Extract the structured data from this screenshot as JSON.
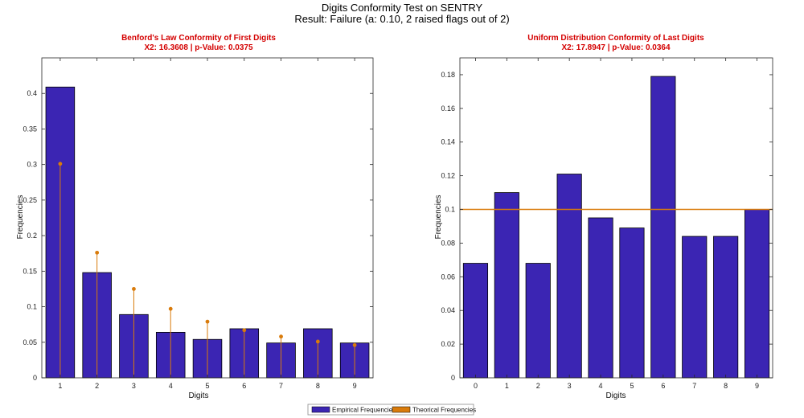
{
  "figure": {
    "title_line1": "Digits Conformity Test on SENTRY",
    "title_line2": "Result: Failure (a: 0.10, 2 raised flags out of 2)"
  },
  "legend": {
    "empirical": "Empirical Frequencies",
    "theoretical": "Theorical Frequencies"
  },
  "colors": {
    "bar_fill": "#3b25b3",
    "theoretical": "#d97b0b",
    "subtitle": "#d40000"
  },
  "chart_data": [
    {
      "type": "bar",
      "title": "Benford's Law Conformity of First Digits",
      "subtitle": "X2: 16.3608 | p-Value: 0.0375",
      "xlabel": "Digits",
      "ylabel": "Frequencies",
      "categories": [
        "1",
        "2",
        "3",
        "4",
        "5",
        "6",
        "7",
        "8",
        "9"
      ],
      "ylim": [
        0,
        0.45
      ],
      "yticks": [
        0,
        0.05,
        0.1,
        0.15,
        0.2,
        0.25,
        0.3,
        0.35,
        0.4
      ],
      "ytick_labels": [
        "0",
        "0.05",
        "0.1",
        "0.15",
        "0.2",
        "0.25",
        "0.3",
        "0.35",
        "0.4"
      ],
      "series": [
        {
          "name": "Empirical Frequencies",
          "kind": "bar",
          "values": [
            0.409,
            0.148,
            0.089,
            0.064,
            0.054,
            0.069,
            0.049,
            0.069,
            0.049
          ]
        },
        {
          "name": "Theorical Frequencies",
          "kind": "stem",
          "values": [
            0.301,
            0.176,
            0.125,
            0.097,
            0.079,
            0.067,
            0.058,
            0.051,
            0.046
          ]
        }
      ]
    },
    {
      "type": "bar",
      "title": "Uniform Distribution Conformity of Last Digits",
      "subtitle": "X2: 17.8947 | p-Value: 0.0364",
      "xlabel": "Digits",
      "ylabel": "Frequencies",
      "categories": [
        "0",
        "1",
        "2",
        "3",
        "4",
        "5",
        "6",
        "7",
        "8",
        "9"
      ],
      "ylim": [
        0,
        0.19
      ],
      "yticks": [
        0,
        0.02,
        0.04,
        0.06,
        0.08,
        0.1,
        0.12,
        0.14,
        0.16,
        0.18
      ],
      "ytick_labels": [
        "0",
        "0.02",
        "0.04",
        "0.06",
        "0.08",
        "0.1",
        "0.12",
        "0.14",
        "0.16",
        "0.18"
      ],
      "series": [
        {
          "name": "Empirical Frequencies",
          "kind": "bar",
          "values": [
            0.068,
            0.11,
            0.068,
            0.121,
            0.095,
            0.089,
            0.179,
            0.084,
            0.084,
            0.1
          ]
        },
        {
          "name": "Theorical Frequencies",
          "kind": "line",
          "values": [
            0.1,
            0.1,
            0.1,
            0.1,
            0.1,
            0.1,
            0.1,
            0.1,
            0.1,
            0.1
          ]
        }
      ]
    }
  ]
}
